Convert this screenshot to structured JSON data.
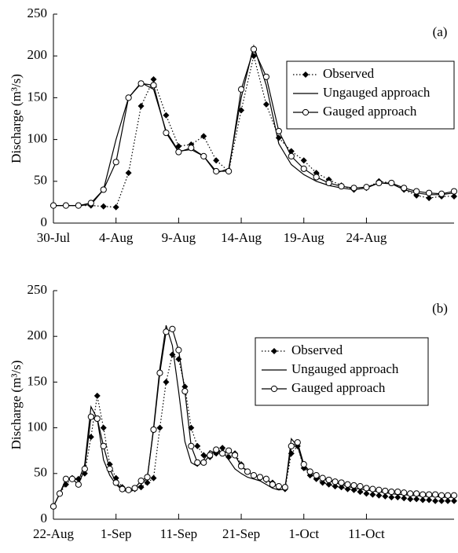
{
  "chart_data": [
    {
      "type": "line",
      "annotation": "(a)",
      "ylabel": "Discharge (m³/s)",
      "legend": "upper right",
      "x": [
        0,
        1,
        2,
        3,
        4,
        5,
        6,
        7,
        8,
        9,
        10,
        11,
        12,
        13,
        14,
        15,
        16,
        17,
        18,
        19,
        20,
        21,
        22,
        23,
        24,
        25,
        26,
        27,
        28,
        29,
        30,
        31,
        32
      ],
      "xlim": [
        0,
        32
      ],
      "xticks": [
        {
          "value": 0,
          "label": "30-Jul"
        },
        {
          "value": 5,
          "label": "4-Aug"
        },
        {
          "value": 10,
          "label": "9-Aug"
        },
        {
          "value": 15,
          "label": "14-Aug"
        },
        {
          "value": 20,
          "label": "19-Aug"
        },
        {
          "value": 25,
          "label": "24-Aug"
        }
      ],
      "ylim": [
        0,
        250
      ],
      "yticks": [
        0,
        50,
        100,
        150,
        200,
        250
      ],
      "series": [
        {
          "name": "Observed",
          "color": "#000000",
          "dash": "dotted",
          "marker": "diamond",
          "values": [
            21,
            21,
            21,
            21,
            20,
            19,
            60,
            140,
            172,
            129,
            92,
            94,
            104,
            75,
            62,
            135,
            200,
            142,
            102,
            86,
            75,
            60,
            52,
            45,
            40,
            42,
            50,
            48,
            40,
            33,
            30,
            32,
            32
          ]
        },
        {
          "name": "Ungauged approach",
          "color": "#000000",
          "values": [
            21,
            21,
            21,
            22,
            40,
            100,
            150,
            168,
            160,
            110,
            86,
            88,
            80,
            60,
            65,
            150,
            212,
            165,
            95,
            70,
            58,
            50,
            45,
            42,
            40,
            42,
            48,
            47,
            40,
            36,
            34,
            34,
            36
          ]
        },
        {
          "name": "Gauged approach",
          "color": "#000000",
          "marker": "circle",
          "values": [
            21,
            21,
            21,
            24,
            40,
            73,
            150,
            167,
            165,
            108,
            85,
            90,
            80,
            62,
            62,
            160,
            208,
            175,
            110,
            80,
            65,
            55,
            48,
            44,
            42,
            43,
            48,
            48,
            42,
            38,
            36,
            35,
            38
          ]
        }
      ]
    },
    {
      "type": "line",
      "annotation": "(b)",
      "ylabel": "Discharge (m³/s)",
      "legend": "upper right",
      "x": [
        0,
        1,
        2,
        3,
        4,
        5,
        6,
        7,
        8,
        9,
        10,
        11,
        12,
        13,
        14,
        15,
        16,
        17,
        18,
        19,
        20,
        21,
        22,
        23,
        24,
        25,
        26,
        27,
        28,
        29,
        30,
        31,
        32,
        33,
        34,
        35,
        36,
        37,
        38,
        39,
        40,
        41,
        42,
        43,
        44,
        45,
        46,
        47,
        48,
        49,
        50,
        51,
        52,
        53,
        54,
        55,
        56,
        57,
        58,
        59,
        60,
        61,
        62,
        63,
        64
      ],
      "xlim": [
        0,
        64
      ],
      "xticks": [
        {
          "value": 0,
          "label": "22-Aug"
        },
        {
          "value": 10,
          "label": "1-Sep"
        },
        {
          "value": 20,
          "label": "11-Sep"
        },
        {
          "value": 30,
          "label": "21-Sep"
        },
        {
          "value": 40,
          "label": "1-Oct"
        },
        {
          "value": 50,
          "label": "11-Oct"
        }
      ],
      "ylim": [
        0,
        250
      ],
      "yticks": [
        0,
        50,
        100,
        150,
        200,
        250
      ],
      "series": [
        {
          "name": "Observed",
          "color": "#000000",
          "dash": "dotted",
          "marker": "diamond",
          "values": [
            14,
            28,
            38,
            45,
            44,
            50,
            90,
            135,
            100,
            60,
            45,
            35,
            32,
            33,
            35,
            40,
            45,
            100,
            150,
            180,
            175,
            145,
            100,
            80,
            70,
            68,
            72,
            78,
            68,
            72,
            60,
            52,
            48,
            45,
            43,
            40,
            36,
            33,
            72,
            80,
            56,
            48,
            44,
            40,
            38,
            36,
            35,
            33,
            32,
            30,
            28,
            27,
            26,
            25,
            24,
            24,
            23,
            22,
            22,
            21,
            21,
            20,
            20,
            20,
            20
          ]
        },
        {
          "name": "Ungauged approach",
          "color": "#000000",
          "values": [
            14,
            28,
            42,
            46,
            42,
            60,
            123,
            110,
            65,
            48,
            38,
            32,
            30,
            32,
            38,
            45,
            100,
            165,
            212,
            190,
            140,
            85,
            62,
            58,
            65,
            75,
            72,
            75,
            65,
            55,
            50,
            46,
            44,
            42,
            38,
            34,
            32,
            33,
            88,
            80,
            58,
            50,
            46,
            44,
            42,
            40,
            38,
            36,
            34,
            33,
            32,
            31,
            30,
            29,
            28,
            27,
            27,
            26,
            26,
            25,
            25,
            25,
            24,
            24,
            24
          ]
        },
        {
          "name": "Gauged approach",
          "color": "#000000",
          "marker": "circle",
          "values": [
            14,
            28,
            44,
            44,
            38,
            55,
            112,
            110,
            80,
            55,
            40,
            33,
            32,
            34,
            42,
            46,
            98,
            160,
            205,
            208,
            185,
            140,
            80,
            62,
            62,
            70,
            76,
            72,
            75,
            70,
            58,
            52,
            48,
            46,
            44,
            38,
            36,
            35,
            80,
            84,
            60,
            52,
            48,
            45,
            43,
            41,
            40,
            38,
            37,
            36,
            34,
            33,
            32,
            31,
            30,
            30,
            29,
            28,
            28,
            27,
            27,
            27,
            26,
            26,
            26
          ]
        }
      ]
    }
  ]
}
